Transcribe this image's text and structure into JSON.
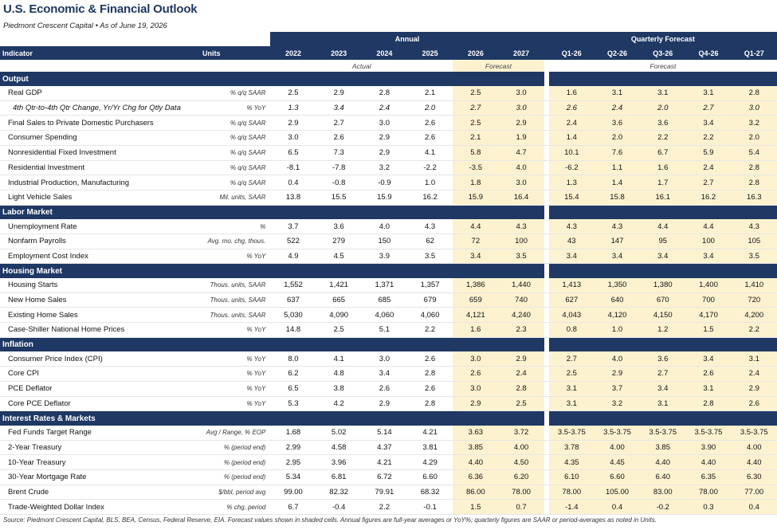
{
  "title": "U.S. Economic & Financial Outlook",
  "subtitle": "Piedmont Crescent Capital  •  As of June 19, 2026",
  "header": {
    "annual_label": "Annual",
    "quarterly_label": "Quarterly Forecast",
    "indicator_label": "Indicator",
    "units_label": "Units",
    "years": [
      "2022",
      "2023",
      "2024",
      "2025",
      "2026",
      "2027"
    ],
    "quarters": [
      "Q1-26",
      "Q2-26",
      "Q3-26",
      "Q4-26",
      "Q1-27"
    ],
    "actual_label": "Actual",
    "forecast_label": "Forecast",
    "quarterly_forecast_sub": "Forecast"
  },
  "sections": [
    {
      "name": "Output",
      "rows": [
        {
          "label": "Real GDP",
          "units": "% q/q SAAR",
          "annual": [
            "2.5",
            "2.9",
            "2.8",
            "2.1",
            "2.5",
            "3.0"
          ],
          "quarterly": [
            "1.6",
            "3.1",
            "3.1",
            "3.1",
            "2.8"
          ],
          "sub": false
        },
        {
          "label": "4th Qtr-to-4th Qtr Change, Yr/Yr Chg for Qtly Data",
          "units": "% YoY",
          "annual": [
            "1.3",
            "3.4",
            "2.4",
            "2.0",
            "2.7",
            "3.0"
          ],
          "quarterly": [
            "2.6",
            "2.4",
            "2.0",
            "2.7",
            "3.0"
          ],
          "sub": true
        },
        {
          "label": "Final Sales to Private Domestic Purchasers",
          "units": "% q/q SAAR",
          "annual": [
            "2.9",
            "2.7",
            "3.0",
            "2.6",
            "2.5",
            "2.9"
          ],
          "quarterly": [
            "2.4",
            "3.6",
            "3.6",
            "3.4",
            "3.2"
          ],
          "sub": false
        },
        {
          "label": "Consumer Spending",
          "units": "% q/q SAAR",
          "annual": [
            "3.0",
            "2.6",
            "2.9",
            "2.6",
            "2.1",
            "1.9"
          ],
          "quarterly": [
            "1.4",
            "2.0",
            "2.2",
            "2.2",
            "2.0"
          ],
          "sub": false
        },
        {
          "label": "Nonresidential Fixed Investment",
          "units": "% q/q SAAR",
          "annual": [
            "6.5",
            "7.3",
            "2.9",
            "4.1",
            "5.8",
            "4.7"
          ],
          "quarterly": [
            "10.1",
            "7.6",
            "6.7",
            "5.9",
            "5.4"
          ],
          "sub": false
        },
        {
          "label": "Residential Investment",
          "units": "% q/q SAAR",
          "annual": [
            "-8.1",
            "-7.8",
            "3.2",
            "-2.2",
            "-3.5",
            "4.0"
          ],
          "quarterly": [
            "-6.2",
            "1.1",
            "1.6",
            "2.4",
            "2.8"
          ],
          "sub": false
        },
        {
          "label": "Industrial Production, Manufacturing",
          "units": "% q/q SAAR",
          "annual": [
            "0.4",
            "-0.8",
            "-0.9",
            "1.0",
            "1.8",
            "3.0"
          ],
          "quarterly": [
            "1.3",
            "1.4",
            "1.7",
            "2.7",
            "2.8"
          ],
          "sub": false
        },
        {
          "label": "Light Vehicle Sales",
          "units": "Mil. units, SAAR",
          "annual": [
            "13.8",
            "15.5",
            "15.9",
            "16.2",
            "15.9",
            "16.4"
          ],
          "quarterly": [
            "15.4",
            "15.8",
            "16.1",
            "16.2",
            "16.3"
          ],
          "sub": false
        }
      ]
    },
    {
      "name": "Labor Market",
      "rows": [
        {
          "label": "Unemployment Rate",
          "units": "%",
          "annual": [
            "3.7",
            "3.6",
            "4.0",
            "4.3",
            "4.4",
            "4.3"
          ],
          "quarterly": [
            "4.3",
            "4.3",
            "4.4",
            "4.4",
            "4.3"
          ],
          "sub": false
        },
        {
          "label": "Nonfarm Payrolls",
          "units": "Avg. mo. chg, thous.",
          "annual": [
            "522",
            "279",
            "150",
            "62",
            "72",
            "100"
          ],
          "quarterly": [
            "43",
            "147",
            "95",
            "100",
            "105"
          ],
          "sub": false
        },
        {
          "label": "Employment Cost Index",
          "units": "% YoY",
          "annual": [
            "4.9",
            "4.5",
            "3.9",
            "3.5",
            "3.4",
            "3.5"
          ],
          "quarterly": [
            "3.4",
            "3.4",
            "3.4",
            "3.4",
            "3.5"
          ],
          "sub": false
        }
      ]
    },
    {
      "name": "Housing Market",
      "rows": [
        {
          "label": "Housing Starts",
          "units": "Thous. units, SAAR",
          "annual": [
            "1,552",
            "1,421",
            "1,371",
            "1,357",
            "1,386",
            "1,440"
          ],
          "quarterly": [
            "1,413",
            "1,350",
            "1,380",
            "1,400",
            "1,410"
          ],
          "sub": false
        },
        {
          "label": "New Home Sales",
          "units": "Thous. units, SAAR",
          "annual": [
            "637",
            "665",
            "685",
            "679",
            "659",
            "740"
          ],
          "quarterly": [
            "627",
            "640",
            "670",
            "700",
            "720"
          ],
          "sub": false
        },
        {
          "label": "Existing Home Sales",
          "units": "Thous. units, SAAR",
          "annual": [
            "5,030",
            "4,090",
            "4,060",
            "4,060",
            "4,121",
            "4,240"
          ],
          "quarterly": [
            "4,043",
            "4,120",
            "4,150",
            "4,170",
            "4,200"
          ],
          "sub": false
        },
        {
          "label": "Case-Shiller National Home Prices",
          "units": "% YoY",
          "annual": [
            "14.8",
            "2.5",
            "5.1",
            "2.2",
            "1.6",
            "2.3"
          ],
          "quarterly": [
            "0.8",
            "1.0",
            "1.2",
            "1.5",
            "2.2"
          ],
          "sub": false
        }
      ]
    },
    {
      "name": "Inflation",
      "rows": [
        {
          "label": "Consumer Price Index (CPI)",
          "units": "% YoY",
          "annual": [
            "8.0",
            "4.1",
            "3.0",
            "2.6",
            "3.0",
            "2.9"
          ],
          "quarterly": [
            "2.7",
            "4.0",
            "3.6",
            "3.4",
            "3.1"
          ],
          "sub": false
        },
        {
          "label": "Core CPI",
          "units": "% YoY",
          "annual": [
            "6.2",
            "4.8",
            "3.4",
            "2.8",
            "2.6",
            "2.4"
          ],
          "quarterly": [
            "2.5",
            "2.9",
            "2.7",
            "2.6",
            "2.4"
          ],
          "sub": false
        },
        {
          "label": "PCE Deflator",
          "units": "% YoY",
          "annual": [
            "6.5",
            "3.8",
            "2.6",
            "2.6",
            "3.0",
            "2.8"
          ],
          "quarterly": [
            "3.1",
            "3.7",
            "3.4",
            "3.1",
            "2.9"
          ],
          "sub": false
        },
        {
          "label": "Core PCE Deflator",
          "units": "% YoY",
          "annual": [
            "5.3",
            "4.2",
            "2.9",
            "2.8",
            "2.9",
            "2.5"
          ],
          "quarterly": [
            "3.1",
            "3.2",
            "3.1",
            "2.8",
            "2.6"
          ],
          "sub": false
        }
      ]
    },
    {
      "name": "Interest Rates & Markets",
      "rows": [
        {
          "label": "Fed Funds Target Range",
          "units": "Avg / Range, % EOP",
          "annual": [
            "1.68",
            "5.02",
            "5.14",
            "4.21",
            "3.63",
            "3.72"
          ],
          "quarterly": [
            "3.5-3.75",
            "3.5-3.75",
            "3.5-3.75",
            "3.5-3.75",
            "3.5-3.75"
          ],
          "sub": false
        },
        {
          "label": "2-Year Treasury",
          "units": "% (period end)",
          "annual": [
            "2.99",
            "4.58",
            "4.37",
            "3.81",
            "3.85",
            "4.00"
          ],
          "quarterly": [
            "3.78",
            "4.00",
            "3.85",
            "3.90",
            "4.00"
          ],
          "sub": false
        },
        {
          "label": "10-Year Treasury",
          "units": "% (period end)",
          "annual": [
            "2.95",
            "3.96",
            "4.21",
            "4.29",
            "4.40",
            "4.50"
          ],
          "quarterly": [
            "4.35",
            "4.45",
            "4.40",
            "4.40",
            "4.40"
          ],
          "sub": false
        },
        {
          "label": "30-Year Mortgage Rate",
          "units": "% (period end)",
          "annual": [
            "5.34",
            "6.81",
            "6.72",
            "6.60",
            "6.36",
            "6.20"
          ],
          "quarterly": [
            "6.10",
            "6.60",
            "6.40",
            "6.35",
            "6.30"
          ],
          "sub": false
        },
        {
          "label": "Brent Crude",
          "units": "$/bbl, period avg",
          "annual": [
            "99.00",
            "82.32",
            "79.91",
            "68.32",
            "86.00",
            "78.00"
          ],
          "quarterly": [
            "78.00",
            "105.00",
            "83.00",
            "78.00",
            "77.00"
          ],
          "sub": false
        },
        {
          "label": "Trade-Weighted Dollar Index",
          "units": "% chg, period",
          "annual": [
            "6.7",
            "-0.4",
            "2.2",
            "-0.1",
            "1.5",
            "0.7"
          ],
          "quarterly": [
            "-1.4",
            "0.4",
            "-0.2",
            "0.3",
            "0.4"
          ],
          "sub": false
        }
      ]
    }
  ],
  "source": "Source: Piedmont Crescent Capital, BLS, BEA, Census, Federal Reserve, EIA. Forecast values shown in shaded cells. Annual figures are full-year averages or YoY%; quarterly figures are SAAR or period-averages as noted in Units.",
  "colors": {
    "header_navy": "#1f3864",
    "forecast_shade": "#fdf2d0"
  }
}
